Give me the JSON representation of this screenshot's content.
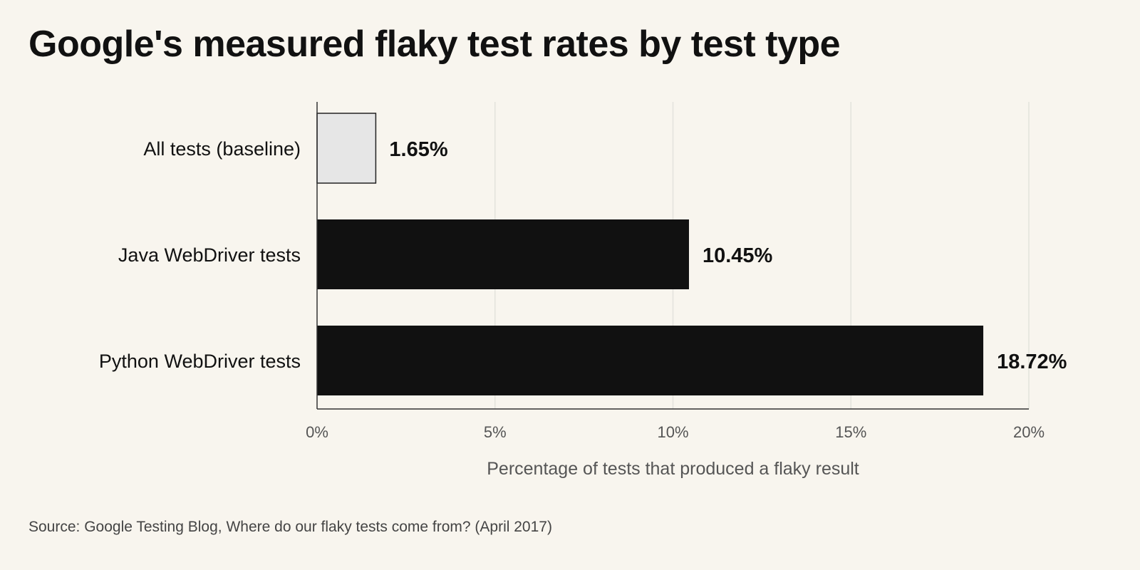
{
  "chart_data": {
    "type": "bar",
    "orientation": "horizontal",
    "title": "Google's measured flaky test rates by test type",
    "categories": [
      "All tests (baseline)",
      "Java WebDriver tests",
      "Python WebDriver tests"
    ],
    "values": [
      1.65,
      10.45,
      18.72
    ],
    "value_labels": [
      "1.65%",
      "10.45%",
      "18.72%"
    ],
    "xlabel": "Percentage of tests that produced a flaky result",
    "ylabel": "",
    "xlim": [
      0,
      20
    ],
    "xticks": [
      0,
      5,
      10,
      15,
      20
    ],
    "xtick_labels": [
      "0%",
      "5%",
      "10%",
      "15%",
      "20%"
    ],
    "grid": true,
    "colors": {
      "baseline_fill": "#e6e6e6",
      "baseline_stroke": "#222222",
      "bar_fill": "#111111",
      "grid": "#e3e3dc",
      "axis": "#333333"
    },
    "source": "Source: Google Testing Blog, Where do our flaky tests come from? (April 2017)"
  }
}
